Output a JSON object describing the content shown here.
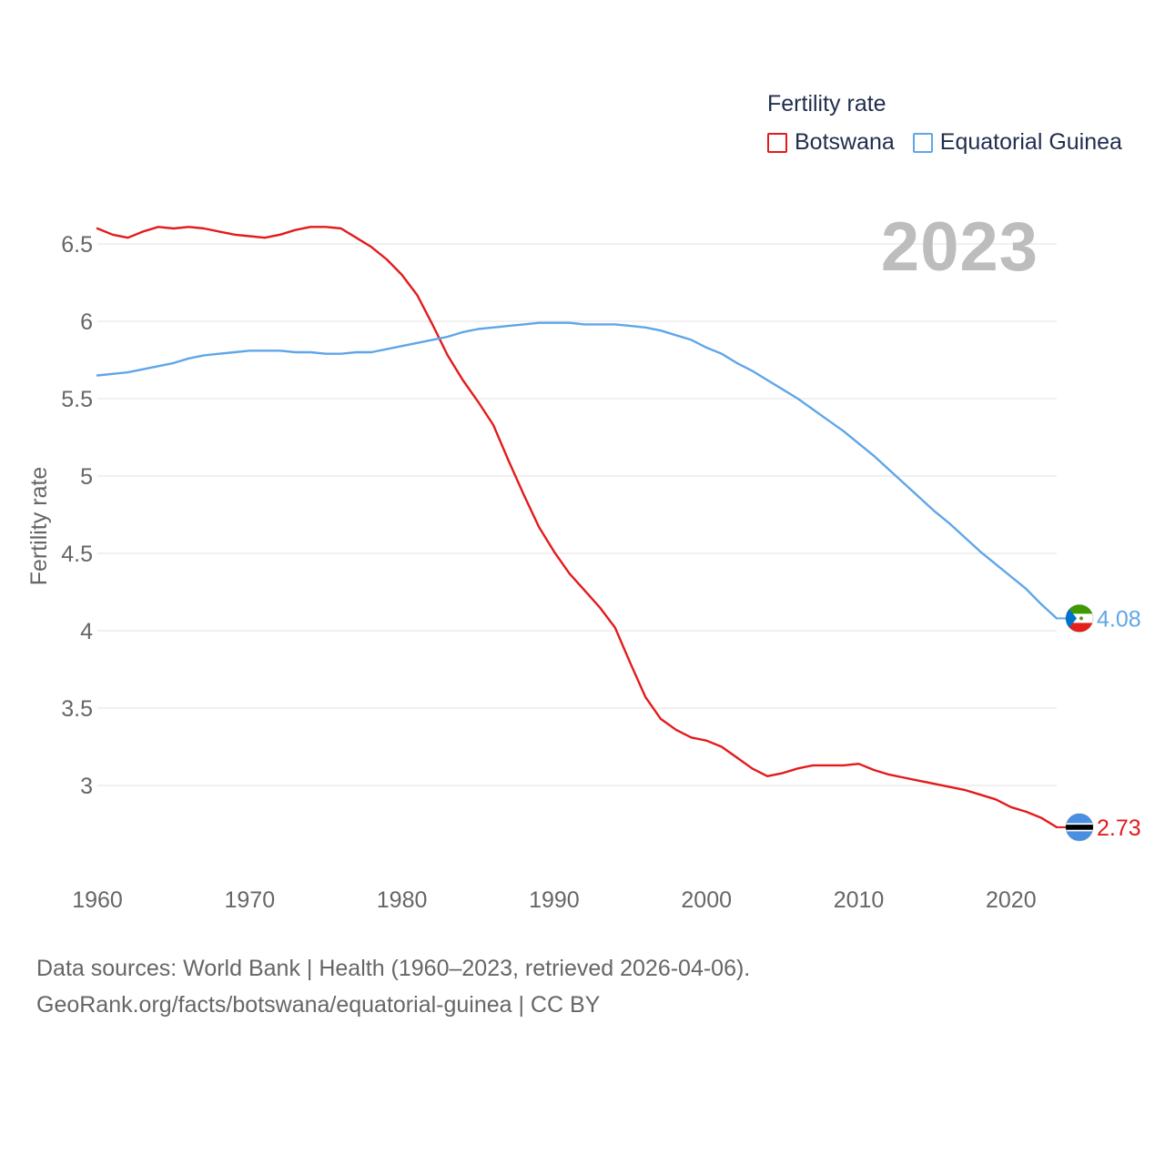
{
  "legend": {
    "title": "Fertility rate",
    "items": [
      {
        "label": "Botswana",
        "color": "#e31a1c"
      },
      {
        "label": "Equatorial Guinea",
        "color": "#5fa6e8"
      }
    ]
  },
  "year_label": "2023",
  "source": {
    "line1": "Data sources: World Bank | Health (1960–2023, retrieved 2026-04-06).",
    "line2": "GeoRank.org/facts/botswana/equatorial-guinea | CC BY"
  },
  "chart_data": {
    "type": "line",
    "title": "Fertility rate",
    "xlabel": "",
    "ylabel": "Fertility rate",
    "xlim": [
      1960,
      2023
    ],
    "ylim": [
      2.55,
      6.75
    ],
    "x_ticks": [
      1960,
      1970,
      1980,
      1990,
      2000,
      2010,
      2020
    ],
    "y_ticks": [
      3,
      3.5,
      4,
      4.5,
      5,
      5.5,
      6,
      6.5
    ],
    "y_tick_labels": [
      "3",
      "3.5",
      "4",
      "4.5",
      "5",
      "5.5",
      "6",
      "6.5"
    ],
    "grid": true,
    "legend_position": "top-right",
    "x": [
      1960,
      1961,
      1962,
      1963,
      1964,
      1965,
      1966,
      1967,
      1968,
      1969,
      1970,
      1971,
      1972,
      1973,
      1974,
      1975,
      1976,
      1977,
      1978,
      1979,
      1980,
      1981,
      1982,
      1983,
      1984,
      1985,
      1986,
      1987,
      1988,
      1989,
      1990,
      1991,
      1992,
      1993,
      1994,
      1995,
      1996,
      1997,
      1998,
      1999,
      2000,
      2001,
      2002,
      2003,
      2004,
      2005,
      2006,
      2007,
      2008,
      2009,
      2010,
      2011,
      2012,
      2013,
      2014,
      2015,
      2016,
      2017,
      2018,
      2019,
      2020,
      2021,
      2022,
      2023
    ],
    "series": [
      {
        "name": "Botswana",
        "color": "#e31a1c",
        "end_label": "2.73",
        "values": [
          6.6,
          6.56,
          6.54,
          6.58,
          6.61,
          6.6,
          6.61,
          6.6,
          6.58,
          6.56,
          6.55,
          6.54,
          6.56,
          6.59,
          6.61,
          6.61,
          6.6,
          6.54,
          6.48,
          6.4,
          6.3,
          6.17,
          5.98,
          5.78,
          5.62,
          5.48,
          5.33,
          5.1,
          4.88,
          4.67,
          4.51,
          4.37,
          4.26,
          4.15,
          4.02,
          3.79,
          3.57,
          3.43,
          3.36,
          3.31,
          3.29,
          3.25,
          3.18,
          3.11,
          3.06,
          3.08,
          3.11,
          3.13,
          3.13,
          3.13,
          3.14,
          3.1,
          3.07,
          3.05,
          3.03,
          3.01,
          2.99,
          2.97,
          2.94,
          2.91,
          2.86,
          2.83,
          2.79,
          2.73
        ]
      },
      {
        "name": "Equatorial Guinea",
        "color": "#5fa6e8",
        "end_label": "4.08",
        "values": [
          5.65,
          5.66,
          5.67,
          5.69,
          5.71,
          5.73,
          5.76,
          5.78,
          5.79,
          5.8,
          5.81,
          5.81,
          5.81,
          5.8,
          5.8,
          5.79,
          5.79,
          5.8,
          5.8,
          5.82,
          5.84,
          5.86,
          5.88,
          5.9,
          5.93,
          5.95,
          5.96,
          5.97,
          5.98,
          5.99,
          5.99,
          5.99,
          5.98,
          5.98,
          5.98,
          5.97,
          5.96,
          5.94,
          5.91,
          5.88,
          5.83,
          5.79,
          5.73,
          5.68,
          5.62,
          5.56,
          5.5,
          5.43,
          5.36,
          5.29,
          5.21,
          5.13,
          5.04,
          4.95,
          4.86,
          4.77,
          4.69,
          4.6,
          4.51,
          4.43,
          4.35,
          4.27,
          4.17,
          4.08
        ]
      }
    ]
  }
}
